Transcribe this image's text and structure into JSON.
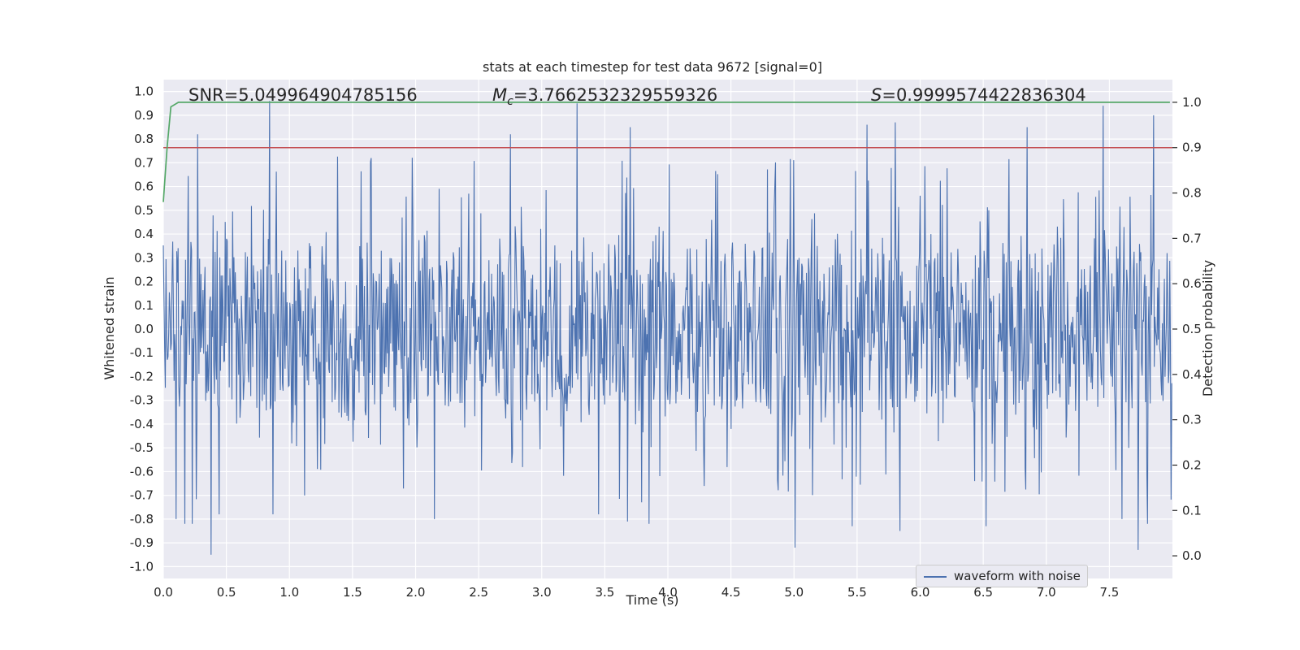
{
  "chart_data": {
    "type": "line",
    "title": "stats at each timestep for test data 9672 [signal=0]",
    "xlabel": "Time (s)",
    "ylabel": "Whitened strain",
    "ylabel_right": "Detection probability",
    "xlim": [
      0.0,
      8.0
    ],
    "ylim": [
      -1.05,
      1.05
    ],
    "ylim_right": [
      -0.05,
      1.05
    ],
    "x_ticks": [
      "0.0",
      "0.5",
      "1.0",
      "1.5",
      "2.0",
      "2.5",
      "3.0",
      "3.5",
      "4.0",
      "4.5",
      "5.0",
      "5.5",
      "6.0",
      "6.5",
      "7.0",
      "7.5"
    ],
    "x_tick_values": [
      0.0,
      0.5,
      1.0,
      1.5,
      2.0,
      2.5,
      3.0,
      3.5,
      4.0,
      4.5,
      5.0,
      5.5,
      6.0,
      6.5,
      7.0,
      7.5
    ],
    "y_ticks": [
      "1.0",
      "0.9",
      "0.8",
      "0.7",
      "0.6",
      "0.5",
      "0.4",
      "0.3",
      "0.2",
      "0.1",
      "0.0",
      "-0.1",
      "-0.2",
      "-0.3",
      "-0.4",
      "-0.5",
      "-0.6",
      "-0.7",
      "-0.8",
      "-0.9",
      "-1.0"
    ],
    "y_tick_values": [
      1.0,
      0.9,
      0.8,
      0.7,
      0.6,
      0.5,
      0.4,
      0.3,
      0.2,
      0.1,
      0.0,
      -0.1,
      -0.2,
      -0.3,
      -0.4,
      -0.5,
      -0.6,
      -0.7,
      -0.8,
      -0.9,
      -1.0
    ],
    "y_ticks_right": [
      "1.0",
      "0.9",
      "0.8",
      "0.7",
      "0.6",
      "0.5",
      "0.4",
      "0.3",
      "0.2",
      "0.1",
      "0.0"
    ],
    "y_tick_values_right": [
      1.0,
      0.9,
      0.8,
      0.7,
      0.6,
      0.5,
      0.4,
      0.3,
      0.2,
      0.1,
      0.0
    ],
    "annotations": {
      "snr": "SNR=5.049964904785156",
      "mc_prefix": "M",
      "mc_sub": "c",
      "mc_value": "=3.7662532329559326",
      "s_prefix": "S",
      "s_value": "=0.9999574422836304"
    },
    "threshold": {
      "name": "threshold",
      "value": 0.9,
      "axis": "right"
    },
    "probability": {
      "name": "detection probability",
      "axis": "right",
      "x": [
        0.0,
        0.03,
        0.06,
        0.12,
        0.3,
        1.0,
        4.0,
        7.98
      ],
      "y": [
        0.78,
        0.9,
        0.99,
        1.0,
        1.0,
        1.0,
        1.0,
        1.0
      ]
    },
    "series": [
      {
        "name": "waveform with noise",
        "axis": "left",
        "duration_s": 8.0,
        "envelope_typical_max": 0.45,
        "envelope_typical_min": -0.45,
        "peaks": [
          {
            "x": 0.27,
            "y": 0.82
          },
          {
            "x": 0.84,
            "y": 0.96
          },
          {
            "x": 1.65,
            "y": 0.72
          },
          {
            "x": 2.75,
            "y": 0.82
          },
          {
            "x": 3.28,
            "y": 0.95
          },
          {
            "x": 3.7,
            "y": 0.85
          },
          {
            "x": 5.58,
            "y": 0.86
          },
          {
            "x": 5.8,
            "y": 0.87
          },
          {
            "x": 6.85,
            "y": 0.85
          },
          {
            "x": 7.45,
            "y": 0.94
          },
          {
            "x": 7.6,
            "y": 1.0
          },
          {
            "x": 7.85,
            "y": 0.9
          }
        ],
        "troughs": [
          {
            "x": 0.1,
            "y": -0.8
          },
          {
            "x": 0.17,
            "y": -0.82
          },
          {
            "x": 0.23,
            "y": -0.82
          },
          {
            "x": 0.38,
            "y": -0.95
          },
          {
            "x": 0.44,
            "y": -0.78
          },
          {
            "x": 0.87,
            "y": -0.78
          },
          {
            "x": 2.15,
            "y": -0.8
          },
          {
            "x": 3.45,
            "y": -0.78
          },
          {
            "x": 3.68,
            "y": -0.81
          },
          {
            "x": 3.85,
            "y": -0.82
          },
          {
            "x": 5.01,
            "y": -0.92
          },
          {
            "x": 5.46,
            "y": -0.83
          },
          {
            "x": 5.84,
            "y": -0.85
          },
          {
            "x": 6.52,
            "y": -0.83
          },
          {
            "x": 7.6,
            "y": -0.8
          },
          {
            "x": 7.73,
            "y": -0.93
          },
          {
            "x": 7.8,
            "y": -0.82
          }
        ]
      }
    ],
    "legend": {
      "label": "waveform with noise",
      "location": "lower-right"
    },
    "colors": {
      "background": "#eaeaf2",
      "grid": "#ffffff",
      "waveform": "#4c72b0",
      "probability": "#55a868",
      "threshold": "#c44e52"
    }
  }
}
